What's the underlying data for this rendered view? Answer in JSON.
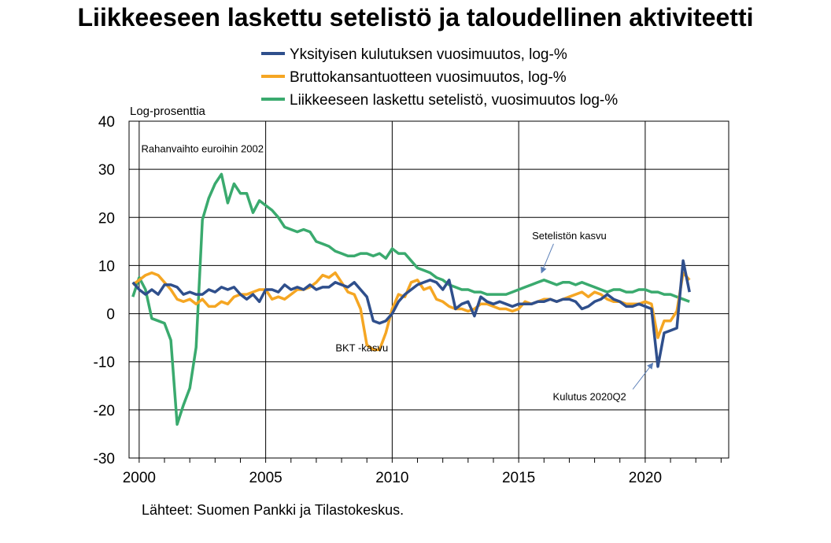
{
  "chart_data": {
    "type": "line",
    "title": "Liikkeeseen laskettu setelistö ja taloudellinen aktiviteetti",
    "ylabel": "Log-prosenttia",
    "xlabel": "",
    "ylim": [
      -30,
      40
    ],
    "xlim": [
      1999.6,
      2023.3
    ],
    "yticks": [
      "40",
      "30",
      "20",
      "10",
      "0",
      "-10",
      "-20",
      "-30"
    ],
    "ytick_values": [
      40,
      30,
      20,
      10,
      0,
      -10,
      -20,
      -30
    ],
    "xticks": [
      "2000",
      "2005",
      "2010",
      "2015",
      "2020"
    ],
    "xtick_values": [
      2000,
      2005,
      2010,
      2015,
      2020
    ],
    "grid": true,
    "legend_position": "top-center",
    "series": [
      {
        "name": "Yksityisen kulutuksen vuosimuutos, log-%",
        "color": "#2F4F8C",
        "points": [
          [
            1999.75,
            6.5
          ],
          [
            2000.0,
            5
          ],
          [
            2000.25,
            4
          ],
          [
            2000.5,
            5
          ],
          [
            2000.75,
            4
          ],
          [
            2001.0,
            6
          ],
          [
            2001.25,
            6
          ],
          [
            2001.5,
            5.5
          ],
          [
            2001.75,
            4
          ],
          [
            2002.0,
            4.5
          ],
          [
            2002.25,
            4
          ],
          [
            2002.5,
            4
          ],
          [
            2002.75,
            5
          ],
          [
            2003.0,
            4.5
          ],
          [
            2003.25,
            5.5
          ],
          [
            2003.5,
            5
          ],
          [
            2003.75,
            5.5
          ],
          [
            2004.0,
            4
          ],
          [
            2004.25,
            3
          ],
          [
            2004.5,
            4
          ],
          [
            2004.75,
            2.5
          ],
          [
            2005.0,
            5
          ],
          [
            2005.25,
            5
          ],
          [
            2005.5,
            4.5
          ],
          [
            2005.75,
            6
          ],
          [
            2006.0,
            5
          ],
          [
            2006.25,
            5.5
          ],
          [
            2006.5,
            5
          ],
          [
            2006.75,
            6
          ],
          [
            2007.0,
            5
          ],
          [
            2007.25,
            5.5
          ],
          [
            2007.5,
            5.5
          ],
          [
            2007.75,
            6.5
          ],
          [
            2008.0,
            6
          ],
          [
            2008.25,
            5.5
          ],
          [
            2008.5,
            6.5
          ],
          [
            2008.75,
            5
          ],
          [
            2009.0,
            3.5
          ],
          [
            2009.25,
            -1.5
          ],
          [
            2009.5,
            -2
          ],
          [
            2009.75,
            -1.5
          ],
          [
            2010.0,
            0
          ],
          [
            2010.25,
            2.5
          ],
          [
            2010.5,
            4
          ],
          [
            2010.75,
            5
          ],
          [
            2011.0,
            6
          ],
          [
            2011.25,
            6.5
          ],
          [
            2011.5,
            7
          ],
          [
            2011.75,
            6.5
          ],
          [
            2012.0,
            5
          ],
          [
            2012.25,
            7
          ],
          [
            2012.5,
            1
          ],
          [
            2012.75,
            2
          ],
          [
            2013.0,
            2.5
          ],
          [
            2013.25,
            -0.5
          ],
          [
            2013.5,
            3.5
          ],
          [
            2013.75,
            2.5
          ],
          [
            2014.0,
            2
          ],
          [
            2014.25,
            2.5
          ],
          [
            2014.5,
            2
          ],
          [
            2014.75,
            1.5
          ],
          [
            2015.0,
            2
          ],
          [
            2015.25,
            2
          ],
          [
            2015.5,
            2
          ],
          [
            2015.75,
            2.5
          ],
          [
            2016.0,
            2.5
          ],
          [
            2016.25,
            3
          ],
          [
            2016.5,
            2.5
          ],
          [
            2016.75,
            3
          ],
          [
            2017.0,
            3
          ],
          [
            2017.25,
            2.5
          ],
          [
            2017.5,
            1
          ],
          [
            2017.75,
            1.5
          ],
          [
            2018.0,
            2.5
          ],
          [
            2018.25,
            3
          ],
          [
            2018.5,
            4
          ],
          [
            2018.75,
            3
          ],
          [
            2019.0,
            2.5
          ],
          [
            2019.25,
            1.5
          ],
          [
            2019.5,
            1.5
          ],
          [
            2019.75,
            2
          ],
          [
            2020.0,
            1.5
          ],
          [
            2020.25,
            1
          ],
          [
            2020.5,
            -11
          ],
          [
            2020.75,
            -4
          ],
          [
            2021.0,
            -3.5
          ],
          [
            2021.25,
            -3
          ],
          [
            2021.5,
            11
          ],
          [
            2021.75,
            4.5
          ]
        ]
      },
      {
        "name": "Bruttokansantuotteen vuosimuutos, log-%",
        "color": "#F5A623",
        "points": [
          [
            1999.75,
            6
          ],
          [
            2000.0,
            7
          ],
          [
            2000.25,
            8
          ],
          [
            2000.5,
            8.5
          ],
          [
            2000.75,
            8
          ],
          [
            2001.0,
            6.5
          ],
          [
            2001.25,
            5
          ],
          [
            2001.5,
            3
          ],
          [
            2001.75,
            2.5
          ],
          [
            2002.0,
            3
          ],
          [
            2002.25,
            2
          ],
          [
            2002.5,
            3
          ],
          [
            2002.75,
            1.5
          ],
          [
            2003.0,
            1.5
          ],
          [
            2003.25,
            2.5
          ],
          [
            2003.5,
            2
          ],
          [
            2003.75,
            3.5
          ],
          [
            2004.0,
            4
          ],
          [
            2004.25,
            4
          ],
          [
            2004.5,
            4.5
          ],
          [
            2004.75,
            5
          ],
          [
            2005.0,
            5
          ],
          [
            2005.25,
            3
          ],
          [
            2005.5,
            3.5
          ],
          [
            2005.75,
            3
          ],
          [
            2006.0,
            4
          ],
          [
            2006.25,
            5
          ],
          [
            2006.5,
            5
          ],
          [
            2006.75,
            5.5
          ],
          [
            2007.0,
            6.5
          ],
          [
            2007.25,
            8
          ],
          [
            2007.5,
            7.5
          ],
          [
            2007.75,
            8.5
          ],
          [
            2008.0,
            6.5
          ],
          [
            2008.25,
            4.5
          ],
          [
            2008.5,
            4
          ],
          [
            2008.75,
            1
          ],
          [
            2009.0,
            -6.5
          ],
          [
            2009.25,
            -7.5
          ],
          [
            2009.5,
            -7.5
          ],
          [
            2009.75,
            -4
          ],
          [
            2010.0,
            1
          ],
          [
            2010.25,
            4
          ],
          [
            2010.5,
            3.5
          ],
          [
            2010.75,
            6.5
          ],
          [
            2011.0,
            7
          ],
          [
            2011.25,
            5
          ],
          [
            2011.5,
            5.5
          ],
          [
            2011.75,
            3
          ],
          [
            2012.0,
            2.5
          ],
          [
            2012.25,
            1.5
          ],
          [
            2012.5,
            1
          ],
          [
            2012.75,
            1
          ],
          [
            2013.0,
            0.5
          ],
          [
            2013.25,
            1
          ],
          [
            2013.5,
            2
          ],
          [
            2013.75,
            2
          ],
          [
            2014.0,
            1.5
          ],
          [
            2014.25,
            1
          ],
          [
            2014.5,
            1
          ],
          [
            2014.75,
            0.5
          ],
          [
            2015.0,
            1
          ],
          [
            2015.25,
            2.5
          ],
          [
            2015.5,
            2
          ],
          [
            2015.75,
            2.5
          ],
          [
            2016.0,
            3
          ],
          [
            2016.25,
            3
          ],
          [
            2016.5,
            2.5
          ],
          [
            2016.75,
            3
          ],
          [
            2017.0,
            3.5
          ],
          [
            2017.25,
            4
          ],
          [
            2017.5,
            4.5
          ],
          [
            2017.75,
            3.5
          ],
          [
            2018.0,
            4.5
          ],
          [
            2018.25,
            4
          ],
          [
            2018.5,
            3
          ],
          [
            2018.75,
            2.5
          ],
          [
            2019.0,
            2.5
          ],
          [
            2019.25,
            2
          ],
          [
            2019.5,
            2
          ],
          [
            2019.75,
            2
          ],
          [
            2020.0,
            2.5
          ],
          [
            2020.25,
            2
          ],
          [
            2020.5,
            -5
          ],
          [
            2020.75,
            -1.5
          ],
          [
            2021.0,
            -1.5
          ],
          [
            2021.25,
            0.5
          ],
          [
            2021.5,
            8.5
          ],
          [
            2021.75,
            7
          ]
        ]
      },
      {
        "name": "Liikkeeseen laskettu setelistö, vuosimuutos log-%",
        "color": "#3AAA6E",
        "points": [
          [
            1999.75,
            3.5
          ],
          [
            2000.0,
            7.5
          ],
          [
            2000.25,
            5
          ],
          [
            2000.5,
            -1
          ],
          [
            2000.75,
            -1.5
          ],
          [
            2001.0,
            -2
          ],
          [
            2001.25,
            -5.5
          ],
          [
            2001.5,
            -23
          ],
          [
            2001.75,
            -19
          ],
          [
            2002.0,
            -15.5
          ],
          [
            2002.25,
            -7
          ],
          [
            2002.5,
            19.5
          ],
          [
            2002.75,
            24
          ],
          [
            2003.0,
            27
          ],
          [
            2003.25,
            29
          ],
          [
            2003.5,
            23
          ],
          [
            2003.75,
            27
          ],
          [
            2004.0,
            25
          ],
          [
            2004.25,
            25
          ],
          [
            2004.5,
            21
          ],
          [
            2004.75,
            23.5
          ],
          [
            2005.0,
            22.5
          ],
          [
            2005.25,
            21.5
          ],
          [
            2005.5,
            20
          ],
          [
            2005.75,
            18
          ],
          [
            2006.0,
            17.5
          ],
          [
            2006.25,
            17
          ],
          [
            2006.5,
            17.5
          ],
          [
            2006.75,
            17
          ],
          [
            2007.0,
            15
          ],
          [
            2007.25,
            14.5
          ],
          [
            2007.5,
            14
          ],
          [
            2007.75,
            13
          ],
          [
            2008.0,
            12.5
          ],
          [
            2008.25,
            12
          ],
          [
            2008.5,
            12
          ],
          [
            2008.75,
            12.5
          ],
          [
            2009.0,
            12.5
          ],
          [
            2009.25,
            12
          ],
          [
            2009.5,
            12.5
          ],
          [
            2009.75,
            11.5
          ],
          [
            2010.0,
            13.5
          ],
          [
            2010.25,
            12.5
          ],
          [
            2010.5,
            12.5
          ],
          [
            2010.75,
            11
          ],
          [
            2011.0,
            9.5
          ],
          [
            2011.25,
            9
          ],
          [
            2011.5,
            8.5
          ],
          [
            2011.75,
            7.5
          ],
          [
            2012.0,
            7
          ],
          [
            2012.25,
            6
          ],
          [
            2012.5,
            5.5
          ],
          [
            2012.75,
            5
          ],
          [
            2013.0,
            5
          ],
          [
            2013.25,
            4.5
          ],
          [
            2013.5,
            4.5
          ],
          [
            2013.75,
            4
          ],
          [
            2014.0,
            4
          ],
          [
            2014.25,
            4
          ],
          [
            2014.5,
            4
          ],
          [
            2014.75,
            4.5
          ],
          [
            2015.0,
            5
          ],
          [
            2015.25,
            5.5
          ],
          [
            2015.5,
            6
          ],
          [
            2015.75,
            6.5
          ],
          [
            2016.0,
            7
          ],
          [
            2016.25,
            6.5
          ],
          [
            2016.5,
            6
          ],
          [
            2016.75,
            6.5
          ],
          [
            2017.0,
            6.5
          ],
          [
            2017.25,
            6
          ],
          [
            2017.5,
            6.5
          ],
          [
            2017.75,
            6
          ],
          [
            2018.0,
            5.5
          ],
          [
            2018.25,
            5
          ],
          [
            2018.5,
            4.5
          ],
          [
            2018.75,
            5
          ],
          [
            2019.0,
            5
          ],
          [
            2019.25,
            4.5
          ],
          [
            2019.5,
            4.5
          ],
          [
            2019.75,
            5
          ],
          [
            2020.0,
            5
          ],
          [
            2020.25,
            4.5
          ],
          [
            2020.5,
            4.5
          ],
          [
            2020.75,
            4
          ],
          [
            2021.0,
            4
          ],
          [
            2021.25,
            3.5
          ],
          [
            2021.5,
            3
          ],
          [
            2021.75,
            2.5
          ]
        ]
      }
    ],
    "annotations": [
      {
        "text": "Rahanvaihto euroihin 2002",
        "x": 2002.5,
        "y": 33.5
      },
      {
        "text": "Setelistön kasvu",
        "x": 2017.0,
        "y": 15.5,
        "arrow_to": [
          2015.9,
          8.5
        ]
      },
      {
        "text": "BKT -kasvu",
        "x": 2008.8,
        "y": -7.8
      },
      {
        "text": "Kulutus 2020Q2",
        "x": 2017.8,
        "y": -18.0,
        "arrow_to": [
          2020.3,
          -10.3
        ]
      }
    ]
  },
  "source": "Lähteet: Suomen Pankki ja Tilastokeskus."
}
